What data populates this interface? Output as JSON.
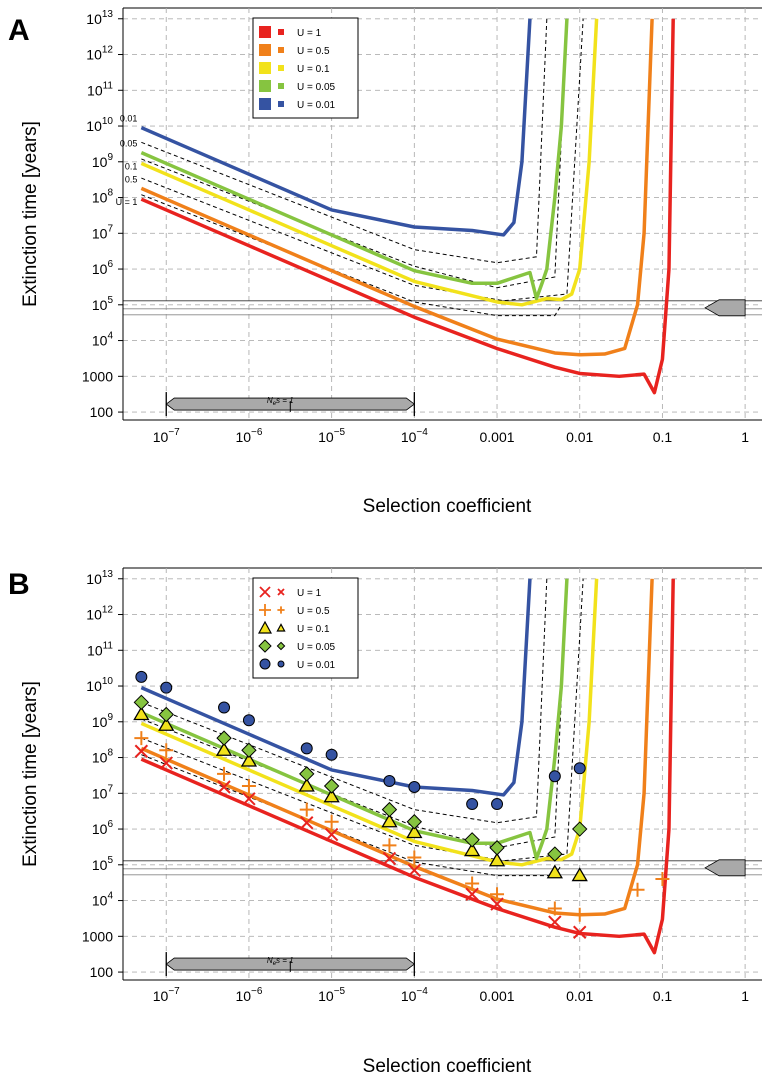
{
  "chart_data": [
    {
      "panel": "A",
      "type": "line",
      "xlabel": "Selection coefficient",
      "ylabel": "Extinction time [years]",
      "xscale": "log",
      "yscale": "log",
      "xlim": [
        3e-08,
        1.6
      ],
      "ylim": [
        60,
        20000000000000.0
      ],
      "x_ticks": [
        {
          "label": "10",
          "exp": "−7",
          "value": 1e-07
        },
        {
          "label": "10",
          "exp": "−6",
          "value": 1e-06
        },
        {
          "label": "10",
          "exp": "−5",
          "value": 1e-05
        },
        {
          "label": "10",
          "exp": "−4",
          "value": 0.0001
        },
        {
          "label": "0.001",
          "exp": "",
          "value": 0.001
        },
        {
          "label": "0.01",
          "exp": "",
          "value": 0.01
        },
        {
          "label": "0.1",
          "exp": "",
          "value": 0.1
        },
        {
          "label": "1",
          "exp": "",
          "value": 1
        }
      ],
      "y_ticks": [
        {
          "label": "100",
          "exp": "",
          "value": 100
        },
        {
          "label": "1000",
          "exp": "",
          "value": 1000
        },
        {
          "label": "10",
          "exp": "4",
          "value": 10000.0
        },
        {
          "label": "10",
          "exp": "5",
          "value": 100000.0
        },
        {
          "label": "10",
          "exp": "6",
          "value": 1000000.0
        },
        {
          "label": "10",
          "exp": "7",
          "value": 10000000.0
        },
        {
          "label": "10",
          "exp": "8",
          "value": 100000000.0
        },
        {
          "label": "10",
          "exp": "9",
          "value": 1000000000.0
        },
        {
          "label": "10",
          "exp": "10",
          "value": 10000000000.0
        },
        {
          "label": "10",
          "exp": "11",
          "value": 100000000000.0
        },
        {
          "label": "10",
          "exp": "12",
          "value": 1000000000000.0
        },
        {
          "label": "10",
          "exp": "13",
          "value": 10000000000000.0
        }
      ],
      "grid": true,
      "legend_position": "top-left",
      "legend": [
        "U = 1",
        "U = 0.5",
        "U = 0.1",
        "U = 0.05",
        "U = 0.01"
      ],
      "curve_labels": [
        "0.01",
        "0.05",
        "0.1",
        "0.5",
        "U = 1"
      ],
      "series": [
        {
          "name": "U = 1",
          "color": "#e8231f",
          "x": [
            5e-08,
            1e-07,
            1e-06,
            1e-05,
            0.0001,
            0.001,
            0.005,
            0.01,
            0.03,
            0.06,
            0.08,
            0.1,
            0.12,
            0.135
          ],
          "y": [
            90000000.0,
            45000000.0,
            4500000.0,
            450000.0,
            45000.0,
            6000,
            1800,
            1200,
            1000,
            1150,
            350,
            3000,
            1000000.0,
            10000000000000.0
          ]
        },
        {
          "name": "U = 0.5",
          "color": "#f0801a",
          "x": [
            5e-08,
            1e-07,
            1e-06,
            1e-05,
            0.0001,
            0.001,
            0.005,
            0.01,
            0.02,
            0.035,
            0.05,
            0.06,
            0.075
          ],
          "y": [
            180000000.0,
            90000000.0,
            9000000.0,
            900000.0,
            90000.0,
            11000.0,
            4500,
            4000,
            4200,
            6000,
            100000.0,
            10000000.0,
            10000000000000.0
          ]
        },
        {
          "name": "U = 0.1",
          "color": "#f2e21b",
          "x": [
            5e-08,
            1e-07,
            1e-06,
            1e-05,
            0.0001,
            0.001,
            0.002,
            0.004,
            0.006,
            0.008,
            0.01,
            0.013,
            0.016
          ],
          "y": [
            900000000.0,
            450000000.0,
            45000000.0,
            4500000.0,
            450000.0,
            120000.0,
            100000.0,
            150000.0,
            140000.0,
            200000.0,
            1000000.0,
            1000000000.0,
            10000000000000.0
          ]
        },
        {
          "name": "U = 0.05",
          "color": "#86c440",
          "x": [
            5e-08,
            1e-07,
            1e-06,
            1e-05,
            0.0001,
            0.0005,
            0.001,
            0.0025,
            0.003,
            0.0035,
            0.004,
            0.005,
            0.006,
            0.007
          ],
          "y": [
            1800000000.0,
            900000000.0,
            90000000.0,
            9000000.0,
            900000.0,
            400000.0,
            400000.0,
            800000.0,
            150000.0,
            400000.0,
            1000000.0,
            100000000.0,
            10000000000.0,
            10000000000000.0
          ]
        },
        {
          "name": "U = 0.01",
          "color": "#3553a2",
          "x": [
            5e-08,
            1e-07,
            1e-06,
            1e-05,
            0.0001,
            0.0005,
            0.0012,
            0.0016,
            0.002,
            0.0025
          ],
          "y": [
            9000000000.0,
            4500000000.0,
            450000000.0,
            45000000.0,
            15000000.0,
            12000000.0,
            9000000.0,
            20000000.0,
            1000000000.0,
            10000000000000.0
          ]
        }
      ],
      "dashed_bounds": [
        {
          "x": [
            5e-08,
            0.0001,
            0.001,
            0.003,
            0.004
          ],
          "y": [
            3500000000.0,
            3500000.0,
            1500000.0,
            2200000.0,
            10000000000000.0
          ]
        },
        {
          "x": [
            5e-08,
            0.0001,
            0.001,
            0.005,
            0.007
          ],
          "y": [
            1200000000.0,
            1200000.0,
            300000.0,
            600000.0,
            10000000000000.0
          ]
        },
        {
          "x": [
            5e-08,
            0.0001,
            0.0012,
            0.007,
            0.011
          ],
          "y": [
            350000000.0,
            350000.0,
            130000.0,
            200000.0,
            10000000000000.0
          ]
        },
        {
          "x": [
            5e-08,
            0.0001,
            0.001,
            0.005,
            0.006
          ],
          "y": [
            120000000.0,
            120000.0,
            50000.0,
            50000.0,
            100000.0
          ]
        }
      ],
      "hlines": [
        100000.0
      ],
      "ne_s_label": "s = 1",
      "ne_s_range": [
        1e-07,
        0.0001
      ]
    },
    {
      "panel": "B",
      "type": "scatter",
      "xlabel": "Selection coefficient",
      "ylabel": "Extinction time [years]",
      "xscale": "log",
      "yscale": "log",
      "xlim": [
        3e-08,
        1.6
      ],
      "ylim": [
        60,
        20000000000000.0
      ],
      "legend_position": "top-left",
      "legend": [
        "U = 1",
        "U = 0.5",
        "U = 0.1",
        "U = 0.05",
        "U = 0.01"
      ],
      "marker_groups": [
        {
          "name": "U = 1",
          "marker": "x",
          "color": "#e8231f",
          "x": [
            5e-08,
            1e-07,
            5e-07,
            1e-06,
            5e-06,
            1e-05,
            5e-05,
            0.0001,
            0.0005,
            0.001,
            0.005,
            0.01
          ],
          "y": [
            150000000.0,
            70000000.0,
            15000000.0,
            7000000.0,
            1500000.0,
            700000.0,
            150000.0,
            70000.0,
            15000.0,
            8000,
            2500,
            1300
          ]
        },
        {
          "name": "U = 0.5",
          "marker": "+",
          "color": "#f0801a",
          "x": [
            5e-08,
            1e-07,
            5e-07,
            1e-06,
            5e-06,
            1e-05,
            5e-05,
            0.0001,
            0.0005,
            0.001,
            0.005,
            0.01,
            0.05,
            0.1
          ],
          "y": [
            350000000.0,
            160000000.0,
            35000000.0,
            16000000.0,
            3500000.0,
            1600000.0,
            350000.0,
            160000.0,
            30000.0,
            15000.0,
            6000,
            4000,
            20000.0,
            40000.0
          ]
        },
        {
          "name": "U = 0.1",
          "marker": "triangle",
          "color": "#f2e21b",
          "x": [
            5e-08,
            1e-07,
            5e-07,
            1e-06,
            5e-06,
            1e-05,
            5e-05,
            0.0001,
            0.0005,
            0.001,
            0.005,
            0.01
          ],
          "y": [
            1600000000.0,
            800000000.0,
            160000000.0,
            80000000.0,
            16000000.0,
            8000000.0,
            1600000.0,
            800000.0,
            250000.0,
            130000.0,
            60000.0,
            50000.0
          ]
        },
        {
          "name": "U = 0.05",
          "marker": "diamond",
          "color": "#86c440",
          "x": [
            5e-08,
            1e-07,
            5e-07,
            1e-06,
            5e-06,
            1e-05,
            5e-05,
            0.0001,
            0.0005,
            0.001,
            0.005,
            0.01
          ],
          "y": [
            3500000000.0,
            1600000000.0,
            350000000.0,
            160000000.0,
            35000000.0,
            16000000.0,
            3500000.0,
            1600000.0,
            500000.0,
            300000.0,
            200000.0,
            1000000.0
          ]
        },
        {
          "name": "U = 0.01",
          "marker": "circle",
          "color": "#3553a2",
          "x": [
            5e-08,
            1e-07,
            5e-07,
            1e-06,
            5e-06,
            1e-05,
            5e-05,
            0.0001,
            0.0005,
            0.001,
            0.005,
            0.01
          ],
          "y": [
            18000000000.0,
            9000000000.0,
            2500000000.0,
            1100000000.0,
            180000000.0,
            120000000.0,
            22000000.0,
            15000000.0,
            5000000.0,
            5000000.0,
            30000000.0,
            50000000.0
          ]
        }
      ],
      "grid": true,
      "ne_s_label": "s = 1",
      "ne_s_range": [
        1e-07,
        0.0001
      ]
    }
  ]
}
